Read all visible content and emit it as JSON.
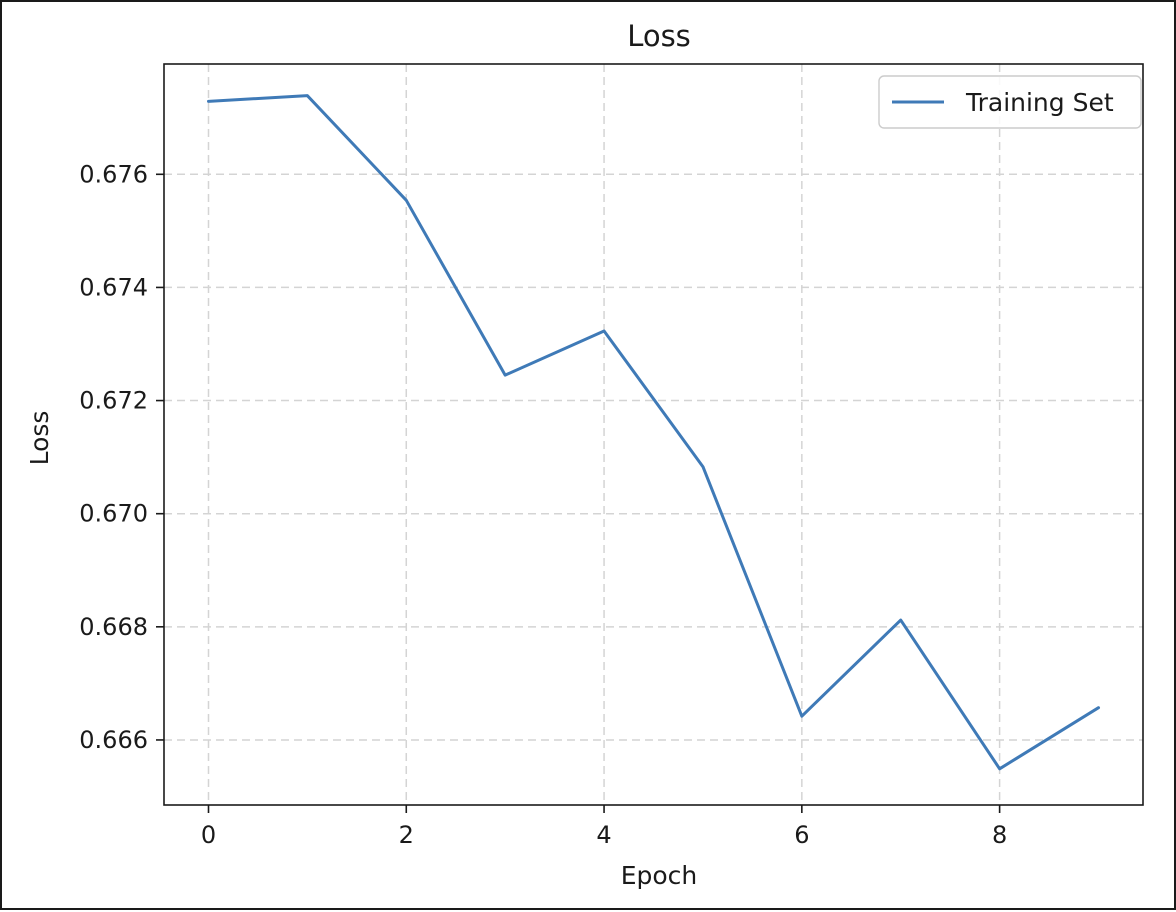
{
  "chart_data": {
    "type": "line",
    "title": "Loss",
    "xlabel": "Epoch",
    "ylabel": "Loss",
    "xlim": [
      -0.45,
      9.45
    ],
    "ylim": [
      0.66485,
      0.67795
    ],
    "x_ticks": [
      0,
      2,
      4,
      6,
      8
    ],
    "x_tick_labels": [
      "0",
      "2",
      "4",
      "6",
      "8"
    ],
    "y_ticks": [
      0.666,
      0.668,
      0.67,
      0.672,
      0.674,
      0.676
    ],
    "y_tick_labels": [
      "0.666",
      "0.668",
      "0.670",
      "0.672",
      "0.674",
      "0.676"
    ],
    "grid": true,
    "legend_position": "top-right",
    "x": [
      0,
      1,
      2,
      3,
      4,
      5,
      6,
      7,
      8,
      9
    ],
    "series": [
      {
        "name": "Training Set",
        "color": "#3f7ab7",
        "values": [
          0.67729,
          0.67739,
          0.67554,
          0.67245,
          0.67323,
          0.67083,
          0.66642,
          0.66812,
          0.66549,
          0.66657
        ]
      }
    ]
  }
}
